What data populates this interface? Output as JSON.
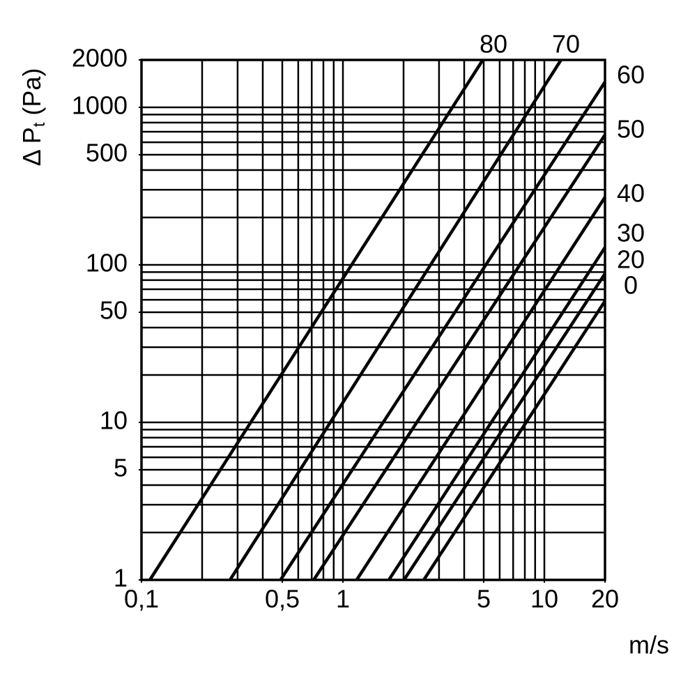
{
  "chart_data": {
    "type": "line",
    "log_x": true,
    "log_y": true,
    "xlabel": "m/s",
    "ylabel": [
      "Δ P",
      "t",
      " (Pa)"
    ],
    "xlim": [
      0.1,
      20
    ],
    "ylim": [
      1,
      2000
    ],
    "xticks": [
      {
        "value": 0.1,
        "label": "0,1"
      },
      {
        "value": 0.5,
        "label": "0,5"
      },
      1,
      5,
      10,
      20
    ],
    "yticks": [
      1,
      5,
      10,
      50,
      100,
      500,
      1000,
      2000
    ],
    "x_grid": [
      0.2,
      0.3,
      0.4,
      0.5,
      0.6,
      0.7,
      0.8,
      0.9,
      1,
      2,
      3,
      4,
      5,
      6,
      7,
      8,
      9,
      10
    ],
    "y_grid": [
      2,
      3,
      4,
      5,
      6,
      7,
      8,
      9,
      10,
      20,
      30,
      40,
      50,
      60,
      70,
      80,
      90,
      100,
      200,
      300,
      400,
      500,
      600,
      700,
      800,
      900,
      1000
    ],
    "series": [
      {
        "name": "80",
        "color": "#000000",
        "x": [
          0.11,
          4.95
        ],
        "values": [
          1,
          2000
        ]
      },
      {
        "name": "70",
        "color": "#000000",
        "x": [
          0.275,
          12.1
        ],
        "values": [
          1,
          2000
        ]
      },
      {
        "name": "60",
        "color": "#000000",
        "x": [
          0.49,
          20
        ],
        "values": [
          1,
          1450
        ]
      },
      {
        "name": "50",
        "color": "#000000",
        "x": [
          0.716,
          20
        ],
        "values": [
          1,
          670
        ]
      },
      {
        "name": "40",
        "color": "#000000",
        "x": [
          1.17,
          20
        ],
        "values": [
          1,
          269
        ]
      },
      {
        "name": "30",
        "color": "#000000",
        "x": [
          1.69,
          20
        ],
        "values": [
          1,
          129
        ]
      },
      {
        "name": "20",
        "color": "#000000",
        "x": [
          2.01,
          20
        ],
        "values": [
          1,
          88
        ]
      },
      {
        "name": "0",
        "color": "#000000",
        "x": [
          2.52,
          20
        ],
        "values": [
          1,
          59
        ]
      }
    ]
  }
}
